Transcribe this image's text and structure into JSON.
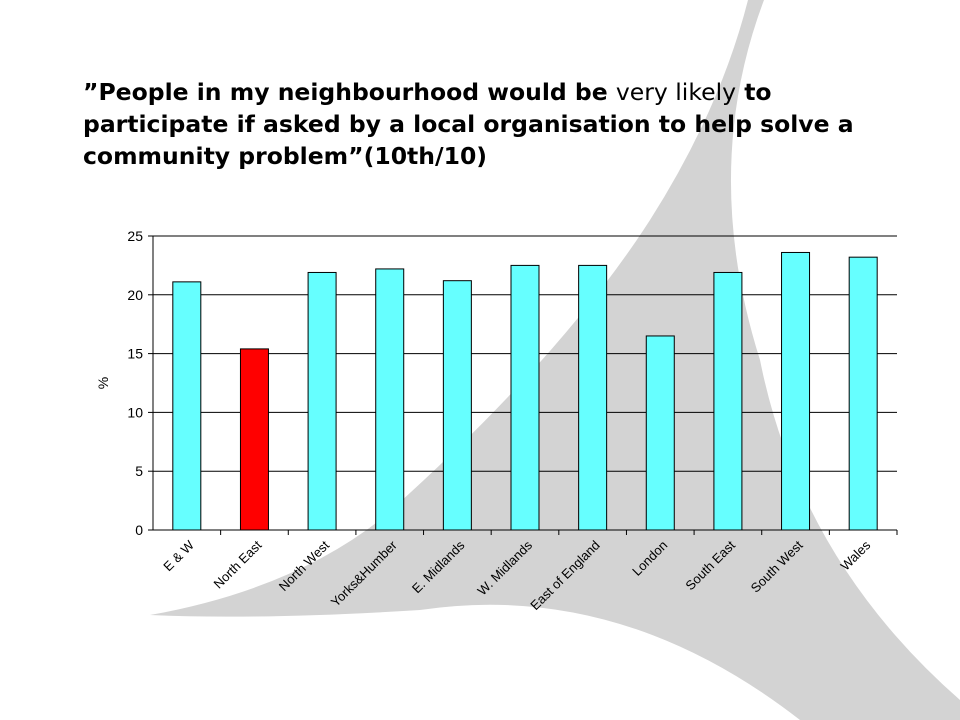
{
  "slide": {
    "title_parts": [
      "”People in my neighbourhood would be ",
      "very likely",
      " to participate if asked by a local organisation to help solve a community problem”(10th/10)"
    ]
  },
  "colors": {
    "bar_default": "#66FFFF",
    "bar_highlight": "#FF0000",
    "backdrop_shape": "#D3D3D3"
  },
  "chart_data": {
    "type": "bar",
    "ylabel": "%",
    "ylim": [
      0,
      25
    ],
    "yticks": [
      0,
      5,
      10,
      15,
      20,
      25
    ],
    "yticks_labels": [
      "0",
      "5",
      "10",
      "15",
      "20",
      "25"
    ],
    "grid": true,
    "categories": [
      "E & W",
      "North East",
      "North West",
      "Yorks&Humber",
      "E. Midlands",
      "W. Midlands",
      "East of England",
      "London",
      "South East",
      "South West",
      "Wales"
    ],
    "values": [
      21.1,
      15.4,
      21.9,
      22.2,
      21.2,
      22.5,
      22.5,
      16.5,
      21.9,
      23.6,
      23.2
    ],
    "highlight_index": 1
  }
}
